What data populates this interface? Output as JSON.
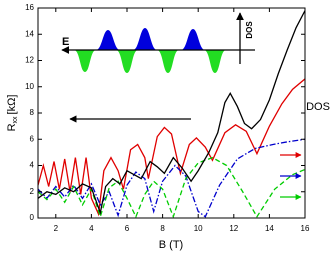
{
  "chart_data": {
    "type": "line",
    "xlabel": "B (T)",
    "ylabel": {
      "main": "R",
      "sub": "xx",
      "unit": "[kΩ]"
    },
    "right_label": "DOS",
    "inset": {
      "x_label": "E",
      "y_label": "DOS"
    },
    "xlim": [
      1,
      16
    ],
    "xticks": [
      2,
      4,
      6,
      8,
      10,
      12,
      14,
      16
    ],
    "ylim": [
      0,
      16
    ],
    "yticks": [
      0,
      2,
      4,
      6,
      8,
      10,
      12,
      14,
      16
    ],
    "grid": false,
    "series": [
      {
        "color": "#e00000",
        "dash": "solid",
        "x": [
          1,
          1.3,
          1.6,
          1.9,
          2.2,
          2.5,
          2.8,
          3.1,
          3.4,
          3.7,
          4.0,
          4.4,
          4.7,
          5.1,
          5.5,
          5.8,
          6.2,
          6.6,
          7.0,
          7.2,
          7.7,
          8.1,
          8.5,
          9.0,
          9.5,
          9.9,
          10.4,
          10.8,
          11.5,
          12.1,
          12.7,
          13.3,
          14.0,
          14.7,
          15.3,
          16
        ],
        "values": [
          2.5,
          4.0,
          2.4,
          4.3,
          2.2,
          4.5,
          2.0,
          4.6,
          1.8,
          4.6,
          1.5,
          0.3,
          3.6,
          4.6,
          3.6,
          2.2,
          5.2,
          5.6,
          4.6,
          3.0,
          6.2,
          6.9,
          6.4,
          3.4,
          5.6,
          6.1,
          5.4,
          4.4,
          6.5,
          7.1,
          6.6,
          4.9,
          7.0,
          8.7,
          9.8,
          10.6
        ]
      },
      {
        "color": "#0000cc",
        "dash": "dashdot",
        "x": [
          1,
          1.5,
          2,
          2.5,
          3,
          3.5,
          4,
          4.5,
          5,
          5.5,
          6,
          6.5,
          7.0,
          7.5,
          8.0,
          8.7,
          9.3,
          10.0,
          10.4,
          11.2,
          12.2,
          13.2,
          14.2,
          15,
          16
        ],
        "values": [
          2.2,
          1.5,
          2.4,
          1.6,
          2.5,
          1.5,
          2.6,
          1.0,
          2.0,
          0.2,
          2.5,
          3.5,
          3.0,
          0.5,
          2.8,
          4.0,
          3.2,
          0.5,
          0.1,
          2.5,
          4.5,
          5.3,
          5.6,
          5.8,
          6.0
        ]
      },
      {
        "color": "#00cc00",
        "dash": "dashed",
        "x": [
          1,
          1.5,
          2,
          2.5,
          3,
          3.5,
          4,
          4.5,
          5,
          5.5,
          6.0,
          6.5,
          7.0,
          7.5,
          8.0,
          8.6,
          9.3,
          10,
          10.8,
          11.6,
          12.5,
          13.3,
          14.3,
          15.3,
          16
        ],
        "values": [
          2.0,
          1.4,
          2.2,
          1.2,
          2.4,
          1.0,
          2.2,
          0.1,
          2.3,
          2.8,
          1.5,
          0.1,
          1.8,
          2.8,
          2.2,
          0.1,
          3.0,
          4.2,
          4.6,
          4.0,
          2.0,
          0.1,
          2.2,
          3.3,
          3.7
        ]
      },
      {
        "color": "#000000",
        "dash": "solid",
        "x": [
          1,
          1.5,
          2,
          2.5,
          3,
          3.5,
          4,
          4.5,
          4.8,
          5.2,
          5.6,
          6,
          6.4,
          6.8,
          7.3,
          7.7,
          8.1,
          8.6,
          9.1,
          9.6,
          10.0,
          10.6,
          11.1,
          11.5,
          11.8,
          12.2,
          12.6,
          13.0,
          13.5,
          14.0,
          14.5,
          15.0,
          15.5,
          16
        ],
        "values": [
          1.5,
          2.0,
          1.8,
          2.3,
          2.0,
          2.6,
          2.3,
          0.4,
          2.4,
          3.0,
          2.6,
          3.6,
          3.3,
          3.0,
          4.3,
          3.9,
          3.4,
          4.6,
          3.8,
          2.8,
          3.6,
          5.0,
          6.5,
          8.8,
          9.5,
          8.5,
          7.2,
          6.8,
          7.5,
          9.0,
          11.0,
          12.8,
          14.5,
          15.8
        ]
      }
    ]
  }
}
